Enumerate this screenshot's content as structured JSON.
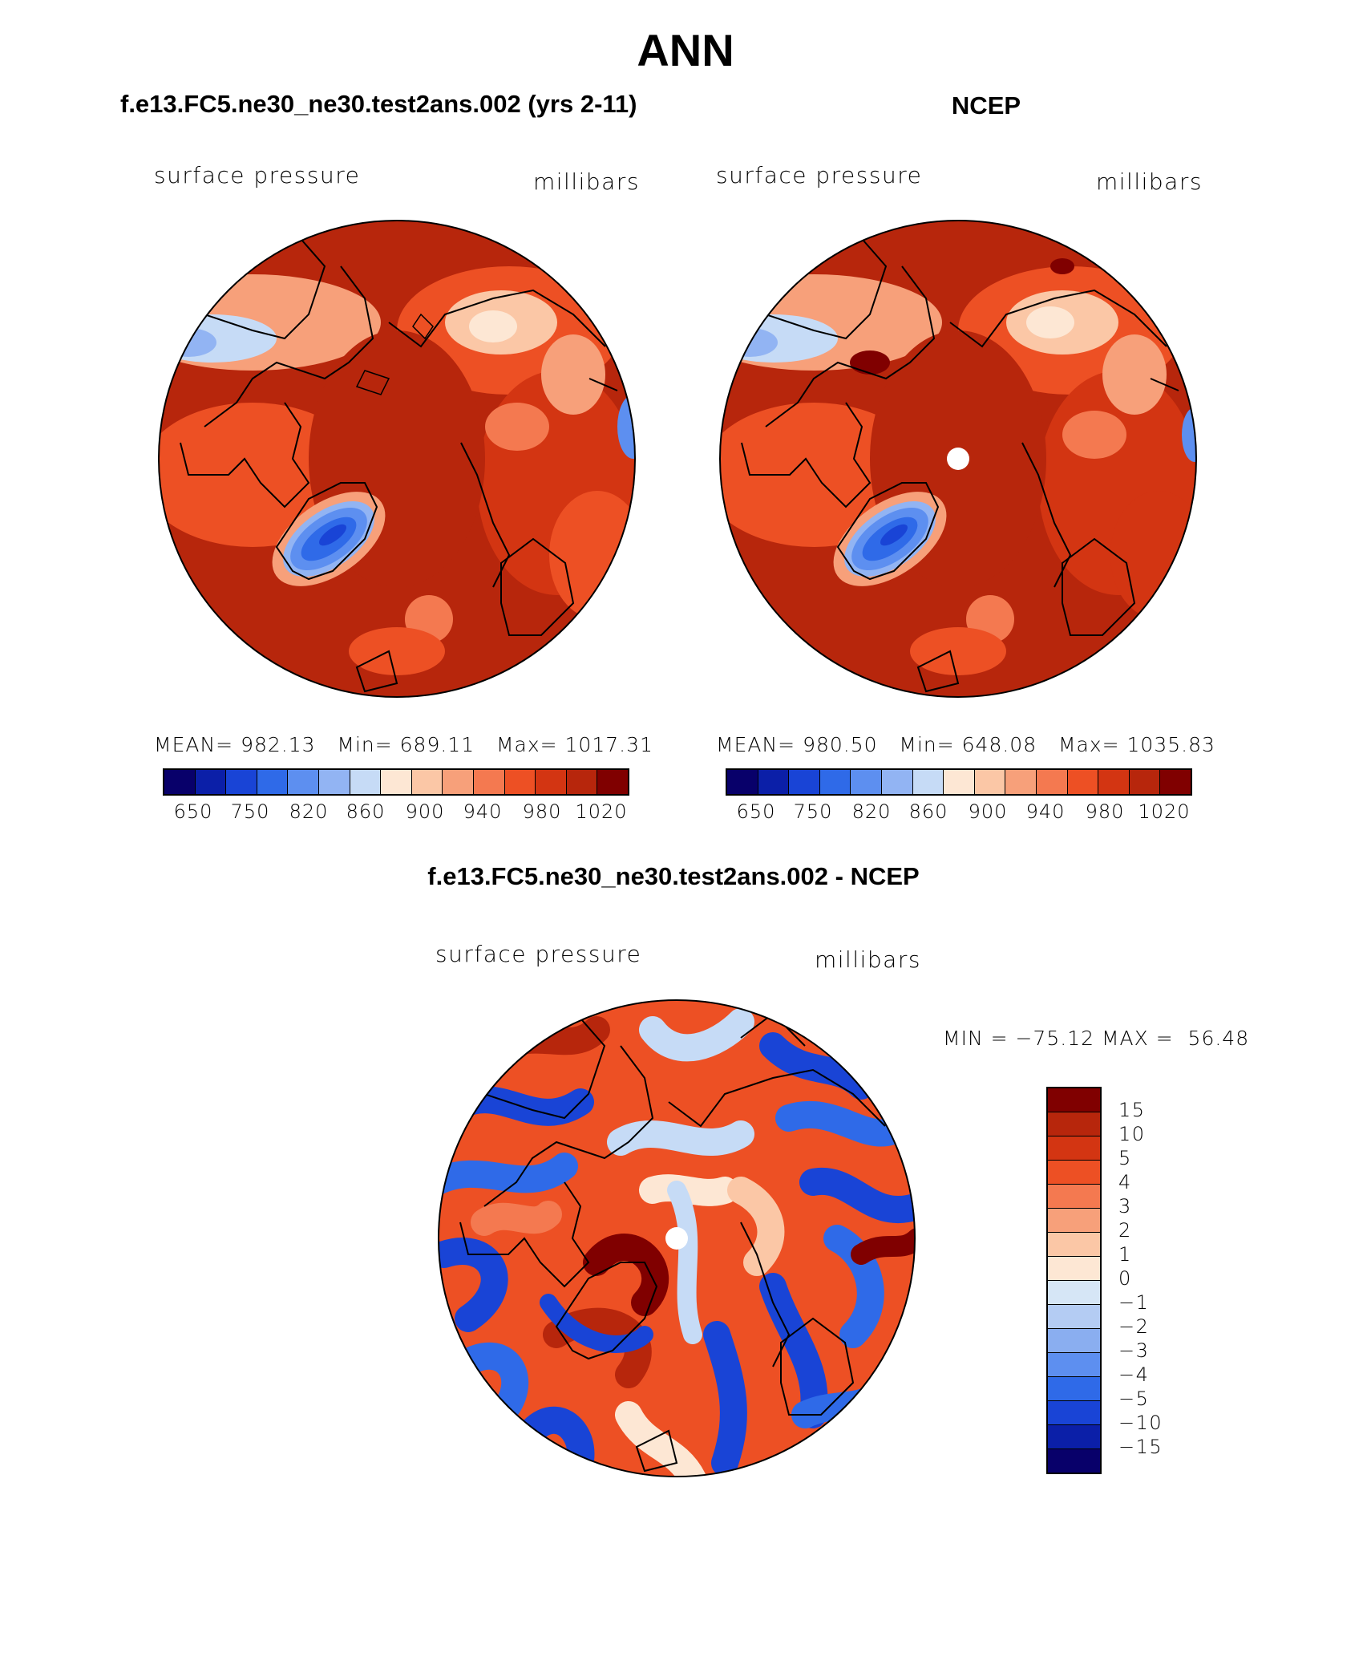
{
  "title": "ANN",
  "colors": {
    "abs_scale": [
      "#08006a",
      "#0b1fa8",
      "#1944d6",
      "#2f6ae8",
      "#5d8ff0",
      "#92b4f3",
      "#c6dbf6",
      "#fde7d4",
      "#fbc7a6",
      "#f7a07a",
      "#f47950",
      "#ed5024",
      "#d33512",
      "#b7260c",
      "#800000"
    ],
    "diff_scale": [
      "#800000",
      "#b7260c",
      "#d33512",
      "#ed5024",
      "#f47950",
      "#f7a07a",
      "#fbc7a6",
      "#fde7d4",
      "#d6e6f6",
      "#b4ccf3",
      "#8aaef0",
      "#5d8ff0",
      "#2f6ae8",
      "#1944d6",
      "#0b1fa8",
      "#08006a"
    ]
  },
  "panels": {
    "model": {
      "title": "f.e13.FC5.ne30_ne30.test2ans.002 (yrs 2-11)",
      "variable": "surface pressure",
      "units": "millibars",
      "stats": "MEAN= 982.13   Min= 689.11   Max= 1017.31",
      "colorbar_ticks": [
        "650",
        "750",
        "820",
        "860",
        "900",
        "940",
        "980",
        "1020"
      ]
    },
    "obs": {
      "title": "NCEP",
      "variable": "surface pressure",
      "units": "millibars",
      "stats": "MEAN= 980.50   Min= 648.08   Max= 1035.83",
      "colorbar_ticks": [
        "650",
        "750",
        "820",
        "860",
        "900",
        "940",
        "980",
        "1020"
      ]
    },
    "diff": {
      "title": "f.e13.FC5.ne30_ne30.test2ans.002 - NCEP",
      "variable": "surface pressure",
      "units": "millibars",
      "stats": "MIN = −75.12 MAX =  56.48",
      "colorbar_ticks": [
        "15",
        "10",
        "5",
        "4",
        "3",
        "2",
        "1",
        "0",
        "−1",
        "−2",
        "−3",
        "−4",
        "−5",
        "−10",
        "−15"
      ]
    }
  }
}
